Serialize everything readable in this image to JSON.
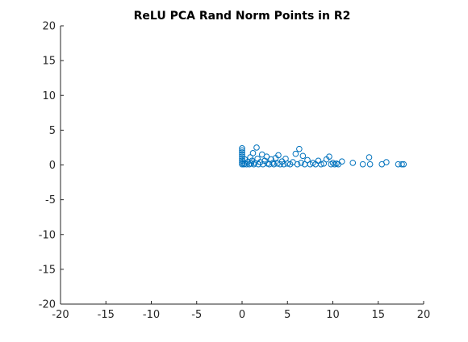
{
  "chart_data": {
    "type": "scatter",
    "title": "ReLU PCA Rand Norm Points in R2",
    "xlabel": "",
    "ylabel": "",
    "xlim": [
      -20,
      20
    ],
    "ylim": [
      -20,
      20
    ],
    "x_ticks": [
      -20,
      -15,
      -10,
      -5,
      0,
      5,
      10,
      15,
      20
    ],
    "y_ticks": [
      20,
      15,
      10,
      5,
      0,
      -5,
      -10,
      -15,
      -20
    ],
    "grid": false,
    "legend": "none",
    "marker": "open-circle",
    "marker_color": "#0072BD",
    "points": [
      [
        0,
        0.1
      ],
      [
        0,
        0.3
      ],
      [
        0,
        0.6
      ],
      [
        0,
        0.9
      ],
      [
        0,
        1.2
      ],
      [
        0,
        1.5
      ],
      [
        0,
        1.8
      ],
      [
        0,
        2.1
      ],
      [
        0,
        2.4
      ],
      [
        0.2,
        0.1
      ],
      [
        0.3,
        0.2
      ],
      [
        0.3,
        0.8
      ],
      [
        0.5,
        0.1
      ],
      [
        0.6,
        0.4
      ],
      [
        0.8,
        0.1
      ],
      [
        0.9,
        1.1
      ],
      [
        1.0,
        0.2
      ],
      [
        1.1,
        0.6
      ],
      [
        1.2,
        1.7
      ],
      [
        1.3,
        0.1
      ],
      [
        1.4,
        0.3
      ],
      [
        1.6,
        2.5
      ],
      [
        1.7,
        0.9
      ],
      [
        1.8,
        0.1
      ],
      [
        2.0,
        0.4
      ],
      [
        2.2,
        1.5
      ],
      [
        2.3,
        0.1
      ],
      [
        2.5,
        0.6
      ],
      [
        2.7,
        1.2
      ],
      [
        2.8,
        0.2
      ],
      [
        3.0,
        0.1
      ],
      [
        3.2,
        0.8
      ],
      [
        3.4,
        0.3
      ],
      [
        3.5,
        0.1
      ],
      [
        3.7,
        1.0
      ],
      [
        3.9,
        0.2
      ],
      [
        4.0,
        1.4
      ],
      [
        4.2,
        0.1
      ],
      [
        4.4,
        0.5
      ],
      [
        4.6,
        0.1
      ],
      [
        4.8,
        0.9
      ],
      [
        5.0,
        0.2
      ],
      [
        5.3,
        0.1
      ],
      [
        5.6,
        0.4
      ],
      [
        5.9,
        1.6
      ],
      [
        6.1,
        0.1
      ],
      [
        6.3,
        2.3
      ],
      [
        6.5,
        0.3
      ],
      [
        6.7,
        1.3
      ],
      [
        6.9,
        0.1
      ],
      [
        7.2,
        0.7
      ],
      [
        7.5,
        0.1
      ],
      [
        7.8,
        0.3
      ],
      [
        8.1,
        0.1
      ],
      [
        8.4,
        0.6
      ],
      [
        8.7,
        0.1
      ],
      [
        9.0,
        0.2
      ],
      [
        9.3,
        0.8
      ],
      [
        9.6,
        1.2
      ],
      [
        9.8,
        0.1
      ],
      [
        10.0,
        0.3
      ],
      [
        10.2,
        0.1
      ],
      [
        10.4,
        0.2
      ],
      [
        10.6,
        0.1
      ],
      [
        11.0,
        0.5
      ],
      [
        12.2,
        0.3
      ],
      [
        13.3,
        0.1
      ],
      [
        14.0,
        1.1
      ],
      [
        14.1,
        0.1
      ],
      [
        15.4,
        0.1
      ],
      [
        15.9,
        0.4
      ],
      [
        17.2,
        0.1
      ],
      [
        17.6,
        0.1
      ],
      [
        17.8,
        0.1
      ]
    ]
  }
}
